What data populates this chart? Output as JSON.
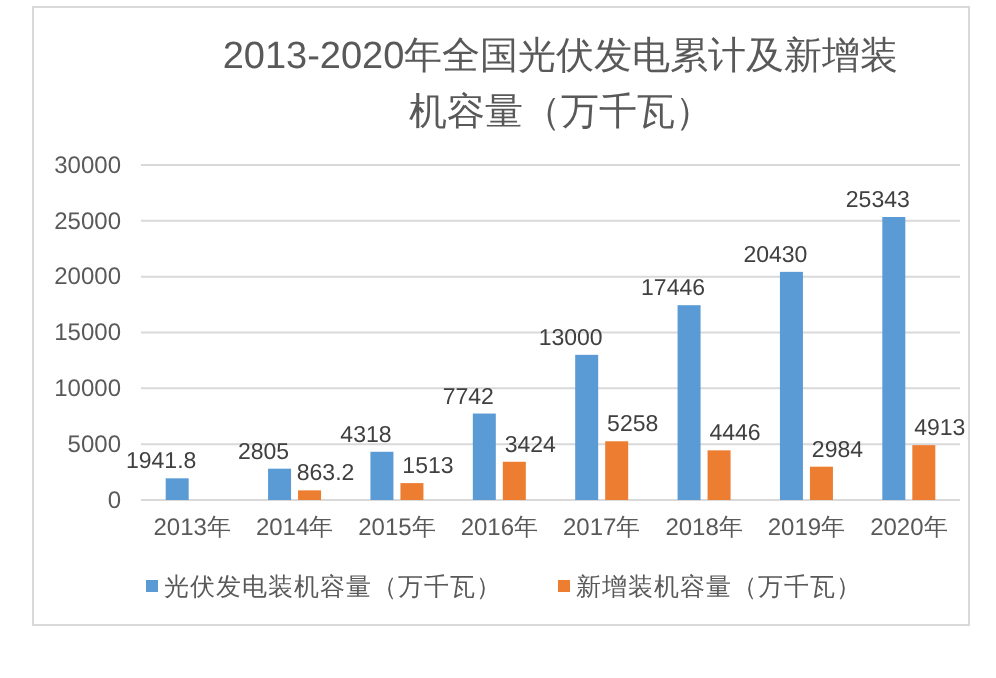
{
  "chart_data": {
    "type": "bar",
    "title": "2013-2020年全国光伏发电累计及新增装机容量（万千瓦）",
    "categories": [
      "2013年",
      "2014年",
      "2015年",
      "2016年",
      "2017年",
      "2018年",
      "2019年",
      "2020年"
    ],
    "series": [
      {
        "name": "光伏发电装机容量（万千瓦）",
        "color": "#5b9bd5",
        "values": [
          1941.8,
          2805,
          4318,
          7742,
          13000,
          17446,
          20430,
          25343
        ]
      },
      {
        "name": "新增装机容量（万千瓦）",
        "color": "#ed7d31",
        "values": [
          null,
          863.2,
          1513,
          3424,
          5258,
          4446,
          2984,
          4913
        ]
      }
    ],
    "ylim": [
      0,
      30000
    ],
    "yticks": [
      0,
      5000,
      10000,
      15000,
      20000,
      25000,
      30000
    ],
    "grid": "y",
    "legend": "bottom",
    "data_labels": true
  }
}
